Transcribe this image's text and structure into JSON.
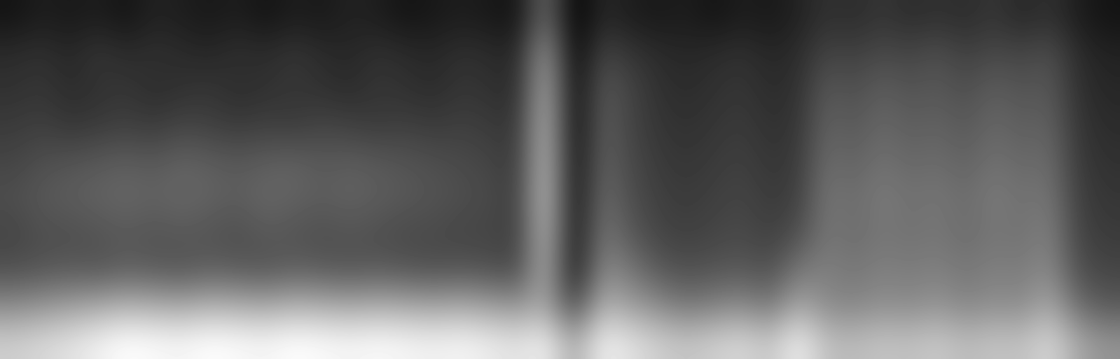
{
  "chart_data": {
    "type": "heatmap",
    "color": "gray",
    "tick_labels": false,
    "cells": [
      [
        0.1,
        0.12,
        0.11,
        0.12,
        0.1,
        0.13,
        0.12,
        0.11,
        0.12,
        0.1,
        0.12,
        0.11,
        0.13,
        0.12,
        0.1,
        0.11,
        0.12,
        0.11,
        0.1,
        0.28,
        0.06,
        0.14,
        0.12,
        0.11,
        0.12,
        0.1,
        0.12,
        0.11,
        0.13,
        0.16,
        0.15,
        0.17,
        0.15,
        0.16,
        0.15,
        0.17,
        0.14,
        0.16,
        0.12,
        0.1
      ],
      [
        0.15,
        0.16,
        0.14,
        0.17,
        0.15,
        0.16,
        0.15,
        0.14,
        0.16,
        0.15,
        0.17,
        0.15,
        0.14,
        0.16,
        0.15,
        0.14,
        0.16,
        0.15,
        0.14,
        0.38,
        0.07,
        0.2,
        0.17,
        0.15,
        0.14,
        0.15,
        0.16,
        0.14,
        0.15,
        0.2,
        0.19,
        0.21,
        0.2,
        0.22,
        0.19,
        0.21,
        0.2,
        0.22,
        0.15,
        0.13
      ],
      [
        0.16,
        0.17,
        0.15,
        0.16,
        0.17,
        0.15,
        0.16,
        0.17,
        0.15,
        0.16,
        0.17,
        0.16,
        0.15,
        0.17,
        0.16,
        0.15,
        0.17,
        0.16,
        0.15,
        0.42,
        0.08,
        0.24,
        0.2,
        0.16,
        0.15,
        0.16,
        0.17,
        0.15,
        0.16,
        0.24,
        0.22,
        0.25,
        0.23,
        0.24,
        0.22,
        0.25,
        0.23,
        0.24,
        0.16,
        0.14
      ],
      [
        0.18,
        0.19,
        0.17,
        0.18,
        0.19,
        0.18,
        0.2,
        0.19,
        0.18,
        0.19,
        0.18,
        0.2,
        0.19,
        0.18,
        0.19,
        0.18,
        0.19,
        0.18,
        0.17,
        0.44,
        0.08,
        0.25,
        0.2,
        0.17,
        0.16,
        0.17,
        0.18,
        0.16,
        0.17,
        0.26,
        0.24,
        0.27,
        0.25,
        0.26,
        0.24,
        0.27,
        0.25,
        0.26,
        0.17,
        0.15
      ],
      [
        0.2,
        0.22,
        0.23,
        0.24,
        0.25,
        0.24,
        0.26,
        0.25,
        0.24,
        0.25,
        0.26,
        0.24,
        0.25,
        0.24,
        0.23,
        0.22,
        0.21,
        0.2,
        0.18,
        0.45,
        0.09,
        0.26,
        0.21,
        0.18,
        0.17,
        0.18,
        0.19,
        0.17,
        0.18,
        0.28,
        0.26,
        0.29,
        0.27,
        0.28,
        0.26,
        0.29,
        0.27,
        0.28,
        0.18,
        0.16
      ],
      [
        0.22,
        0.24,
        0.25,
        0.26,
        0.27,
        0.26,
        0.27,
        0.26,
        0.25,
        0.27,
        0.26,
        0.25,
        0.26,
        0.25,
        0.24,
        0.23,
        0.22,
        0.21,
        0.19,
        0.46,
        0.09,
        0.28,
        0.22,
        0.19,
        0.18,
        0.19,
        0.2,
        0.18,
        0.19,
        0.3,
        0.28,
        0.31,
        0.29,
        0.3,
        0.28,
        0.31,
        0.29,
        0.3,
        0.19,
        0.17
      ],
      [
        0.2,
        0.22,
        0.22,
        0.23,
        0.24,
        0.23,
        0.24,
        0.23,
        0.22,
        0.24,
        0.23,
        0.22,
        0.23,
        0.22,
        0.21,
        0.21,
        0.2,
        0.2,
        0.19,
        0.44,
        0.1,
        0.3,
        0.24,
        0.2,
        0.19,
        0.2,
        0.21,
        0.19,
        0.22,
        0.3,
        0.28,
        0.3,
        0.29,
        0.3,
        0.28,
        0.3,
        0.29,
        0.32,
        0.2,
        0.18
      ],
      [
        0.22,
        0.23,
        0.24,
        0.23,
        0.25,
        0.24,
        0.23,
        0.25,
        0.24,
        0.23,
        0.25,
        0.24,
        0.23,
        0.24,
        0.23,
        0.22,
        0.23,
        0.22,
        0.21,
        0.42,
        0.1,
        0.34,
        0.3,
        0.24,
        0.22,
        0.23,
        0.24,
        0.22,
        0.3,
        0.32,
        0.3,
        0.32,
        0.31,
        0.32,
        0.3,
        0.32,
        0.31,
        0.34,
        0.22,
        0.2
      ],
      [
        0.34,
        0.36,
        0.38,
        0.4,
        0.42,
        0.41,
        0.4,
        0.42,
        0.41,
        0.4,
        0.42,
        0.41,
        0.4,
        0.41,
        0.4,
        0.39,
        0.4,
        0.38,
        0.36,
        0.4,
        0.2,
        0.42,
        0.38,
        0.34,
        0.3,
        0.32,
        0.34,
        0.3,
        0.4,
        0.34,
        0.33,
        0.35,
        0.34,
        0.36,
        0.33,
        0.35,
        0.34,
        0.4,
        0.28,
        0.24
      ],
      [
        0.48,
        0.5,
        0.52,
        0.55,
        0.58,
        0.57,
        0.56,
        0.58,
        0.57,
        0.56,
        0.58,
        0.57,
        0.56,
        0.57,
        0.56,
        0.55,
        0.56,
        0.54,
        0.52,
        0.55,
        0.4,
        0.55,
        0.52,
        0.48,
        0.46,
        0.48,
        0.5,
        0.46,
        0.55,
        0.45,
        0.44,
        0.46,
        0.45,
        0.47,
        0.44,
        0.46,
        0.45,
        0.5,
        0.4,
        0.36
      ]
    ]
  }
}
